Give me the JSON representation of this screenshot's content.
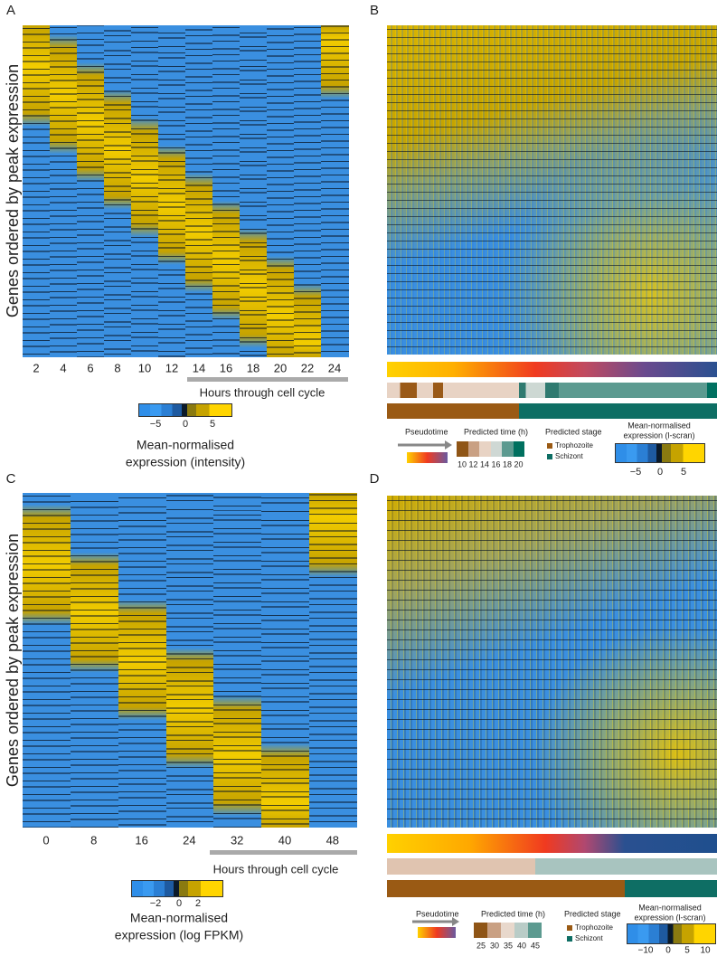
{
  "panels": [
    {
      "label": "A",
      "y_axis_label": "Genes ordered by peak expression",
      "x_ticks": [
        2,
        4,
        6,
        8,
        10,
        12,
        14,
        16,
        18,
        20,
        22,
        24
      ],
      "x_axis_label": "Hours through cell cycle",
      "colorbar": {
        "ticks": [
          {
            "value": -5,
            "label": "−5"
          },
          0,
          5
        ],
        "label": [
          "Mean-normalised",
          "expression (intensity)"
        ]
      }
    },
    {
      "label": "B",
      "legend": {
        "pseudotime": "Pseudotime",
        "predicted_time": {
          "title": "Predicted time (h)",
          "ticks": [
            10,
            12,
            14,
            16,
            18,
            20
          ]
        },
        "predicted_stage": {
          "title": "Predicted stage",
          "items": [
            "Trophozoite",
            "Schizont"
          ]
        },
        "colorbar": {
          "label": [
            "Mean-normalised",
            "expression (l-scran)"
          ],
          "ticks": [
            {
              "value": -5,
              "label": "−5"
            },
            0,
            5
          ]
        }
      }
    },
    {
      "label": "C",
      "y_axis_label": "Genes ordered by peak expression",
      "x_ticks": [
        0,
        8,
        16,
        24,
        32,
        40,
        48
      ],
      "x_axis_label": "Hours through cell cycle",
      "colorbar": {
        "ticks": [
          {
            "value": -2,
            "label": "−2"
          },
          0,
          2
        ],
        "label": [
          "Mean-normalised",
          "expression (log FPKM)"
        ]
      }
    },
    {
      "label": "D",
      "legend": {
        "pseudotime": "Pseudotime",
        "predicted_time": {
          "title": "Predicted time (h)",
          "ticks": [
            25,
            30,
            35,
            40,
            45
          ]
        },
        "predicted_stage": {
          "title": "Predicted stage",
          "items": [
            "Trophozoite",
            "Schizont"
          ]
        },
        "colorbar": {
          "label": [
            "Mean-normalised",
            "expression (l-scran)"
          ],
          "ticks": [
            {
              "value": -10,
              "label": "−10"
            },
            0,
            5,
            10
          ]
        }
      }
    }
  ]
}
